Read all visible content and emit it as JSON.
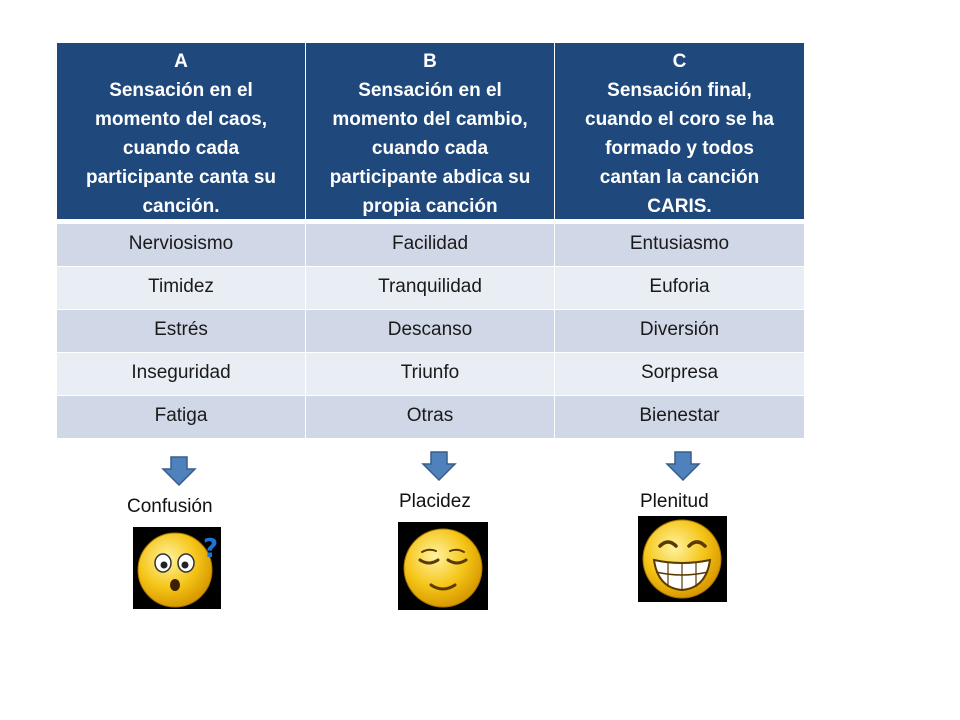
{
  "columns": [
    {
      "letter": "A",
      "title": "Sensación en el momento del caos, cuando cada participante canta su canción.",
      "title_lines": [
        "Sensación en el",
        "momento del caos,",
        "cuando cada",
        "participante canta su",
        "canción."
      ]
    },
    {
      "letter": "B",
      "title": "Sensación en el momento del cambio, cuando cada participante abdica su propia canción",
      "title_lines": [
        "Sensación en el",
        "momento del cambio,",
        "cuando cada",
        "participante abdica su",
        "propia canción"
      ]
    },
    {
      "letter": "C",
      "title": "Sensación final, cuando el coro se ha formado y todos cantan la canción CARIS.",
      "title_lines": [
        "Sensación final,",
        "cuando el coro se ha",
        "formado y todos",
        "cantan la canción",
        "CARIS."
      ]
    }
  ],
  "rows": [
    [
      "Nerviosismo",
      "Facilidad",
      "Entusiasmo"
    ],
    [
      "Timidez",
      "Tranquilidad",
      "Euforia"
    ],
    [
      "Estrés",
      "Descanso",
      "Diversión"
    ],
    [
      "Inseguridad",
      "Triunfo",
      "Sorpresa"
    ],
    [
      "Fatiga",
      "Otras",
      "Bienestar"
    ]
  ],
  "results": [
    {
      "label": "Confusión",
      "icon": "confused-face-icon"
    },
    {
      "label": "Placidez",
      "icon": "relieved-face-icon"
    },
    {
      "label": "Plenitud",
      "icon": "grinning-face-icon"
    }
  ],
  "colors": {
    "header": "#1f497d",
    "row_odd": "#d0d8e8",
    "row_even": "#e9edf4",
    "arrow": "#4f81bd",
    "face": "#f5c518"
  }
}
